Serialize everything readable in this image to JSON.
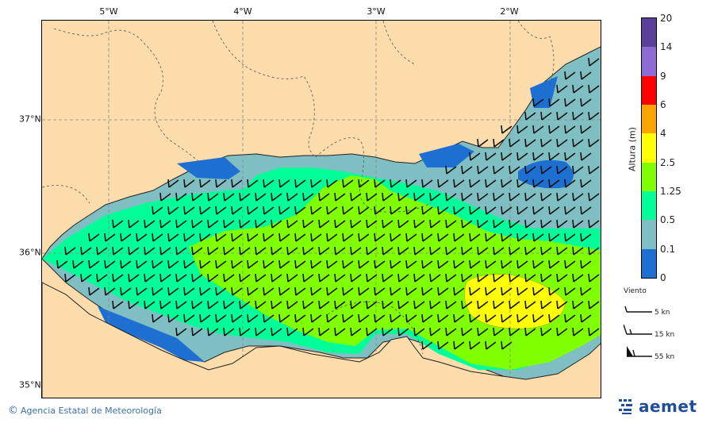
{
  "map": {
    "longitude_labels": [
      "5°W",
      "4°W",
      "3°W",
      "2°W"
    ],
    "latitude_labels": [
      "37°N",
      "36°N",
      "35°N"
    ]
  },
  "colorbar": {
    "title": "Altura (m)",
    "ticks": [
      "20",
      "14",
      "9",
      "6",
      "4",
      "2.5",
      "1.25",
      "0.5",
      "0.1",
      "0"
    ],
    "colors": [
      "#5b3f9b",
      "#8e6bd4",
      "#ff0000",
      "#ffa500",
      "#ffff00",
      "#80ff00",
      "#00ff99",
      "#7fbfc4",
      "#1d6fd1"
    ]
  },
  "wind_legend": {
    "title": "Viento",
    "items": [
      "5 kn",
      "15 kn",
      "55 kn"
    ]
  },
  "footer": {
    "credit": "Agencia Estatal de Meteorología",
    "logo_text": "aemet"
  },
  "colors": {
    "land": "#fbdcaa",
    "sea_low": "#7fbfc4",
    "sea_mid": "#00ff99",
    "sea_high": "#80ff00",
    "sea_peak": "#ffff00",
    "calm": "#1d6fd1"
  }
}
